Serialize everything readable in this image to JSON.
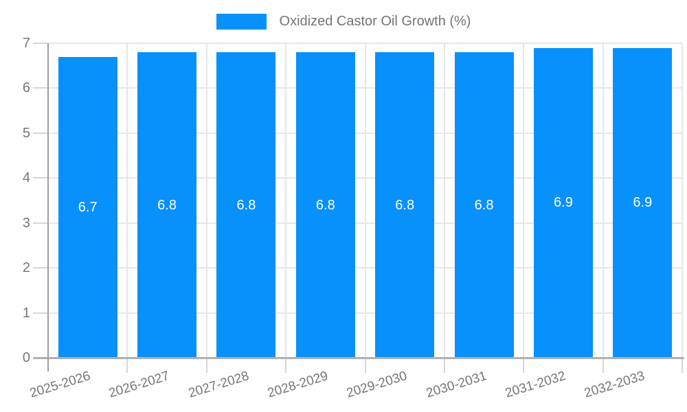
{
  "chart_data": {
    "type": "bar",
    "title": "",
    "legend_label": "Oxidized Castor Oil Growth (%)",
    "legend_position": "top",
    "categories": [
      "2025-2026",
      "2026-2027",
      "2027-2028",
      "2028-2029",
      "2029-2030",
      "2030-2031",
      "2031-2032",
      "2032-2033"
    ],
    "series": [
      {
        "name": "Oxidized Castor Oil Growth (%)",
        "values": [
          6.7,
          6.8,
          6.8,
          6.8,
          6.8,
          6.8,
          6.9,
          6.9
        ]
      }
    ],
    "value_labels": [
      "6.7",
      "6.8",
      "6.8",
      "6.8",
      "6.8",
      "6.8",
      "6.9",
      "6.9"
    ],
    "xlabel": "",
    "ylabel": "",
    "ylim": [
      0,
      7
    ],
    "yticks": [
      0,
      1,
      2,
      3,
      4,
      5,
      6,
      7
    ],
    "grid": "on"
  },
  "colors": {
    "bar": "#0890fb",
    "axis_text": "#757575",
    "bar_value_text": "#ffffff",
    "gridline": "#e6e6e6",
    "tick": "#d6d6d6",
    "axis_line": "#9e9e9e",
    "baseline": "#b0b0b0",
    "background": "#ffffff"
  }
}
